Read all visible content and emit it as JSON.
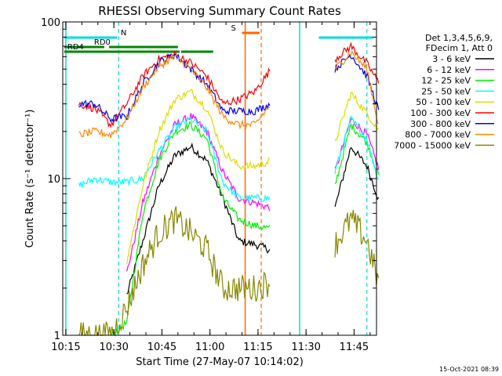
{
  "colors": {
    "3-6": "#000000",
    "6-12": "#ff00ff",
    "12-25": "#00ee00",
    "25-50": "#00ffff",
    "50-100": "#dddd00",
    "100-300": "#ff0000",
    "300-800": "#0000ee",
    "800-7000": "#ff8800",
    "7000-15000": "#888800",
    "attenuator": "#008800",
    "decimation": "#00dddd",
    "saa": "#ff6600"
  },
  "chart_data": {
    "type": "line",
    "title": "RHESSI Observing Summary Count Rates",
    "xlabel": "Start Time (27-May-07 10:14:02)",
    "ylabel": "Count Rate (s⁻¹ detector⁻¹)",
    "y_scale": "log",
    "xlim": [
      "10:14:02",
      "11:52:00"
    ],
    "ylim": [
      1,
      100
    ],
    "x_ticks": [
      "10:15",
      "10:30",
      "10:45",
      "11:00",
      "11:15",
      "11:30",
      "11:45"
    ],
    "y_ticks": [
      "1",
      "10",
      "100"
    ],
    "legend_header": [
      "Det 1,3,4,5,6,9,",
      "FDecim 1, Att 0"
    ],
    "legend_position": "right",
    "flags": {
      "RD0": {
        "label": "RD0",
        "intervals": [
          [
            "10:14:30",
            "10:27:00"
          ],
          [
            "10:28:30",
            "10:50:00"
          ]
        ]
      },
      "RD4": {
        "label": "RD4",
        "intervals": [
          [
            "10:14:30",
            "10:50:30"
          ],
          [
            "10:51:00",
            "11:01:00"
          ]
        ]
      },
      "N": {
        "label": "N",
        "intervals": [
          [
            "10:14:30",
            "10:31:00"
          ],
          [
            "11:34:00",
            "11:51:00"
          ]
        ]
      },
      "S": {
        "label": "S",
        "intervals": [
          [
            "11:10:00",
            "11:15:30"
          ]
        ]
      }
    },
    "markers": {
      "night_start": [
        "10:15:00",
        "11:28:00"
      ],
      "night_end": [
        "10:31:30",
        "11:49:00"
      ],
      "saa_start": "11:11:00",
      "saa_end": "11:16:00"
    },
    "x_minutes": [
      0,
      5,
      10,
      15,
      20,
      25,
      30,
      35,
      40,
      45,
      50,
      55,
      60,
      65,
      70,
      75,
      80,
      85,
      90,
      95,
      99
    ],
    "series": [
      {
        "name": "3 - 6 keV",
        "color": "3-6",
        "values": [
          null,
          null,
          null,
          null,
          1.8,
          4.0,
          9.0,
          14.0,
          16.0,
          13.0,
          7.5,
          4.0,
          3.8,
          3.5,
          null,
          null,
          null,
          6.5,
          16.0,
          12.0,
          7.0
        ]
      },
      {
        "name": "6 - 12 keV",
        "color": "6-12",
        "values": [
          null,
          null,
          null,
          null,
          2.5,
          7.0,
          14.0,
          22.0,
          25.0,
          20.0,
          11.0,
          7.5,
          7.0,
          6.5,
          null,
          null,
          null,
          11.0,
          24.0,
          19.0,
          11.0
        ]
      },
      {
        "name": "12 - 25 keV",
        "color": "12-25",
        "values": [
          null,
          null,
          null,
          1.0,
          1.2,
          6.0,
          13.0,
          20.0,
          22.0,
          18.0,
          7.5,
          5.5,
          5.0,
          4.8,
          null,
          null,
          null,
          9.0,
          22.0,
          17.0,
          10.0
        ]
      },
      {
        "name": "25 - 50 keV",
        "color": "25-50",
        "values": [
          null,
          9.0,
          10.0,
          9.5,
          9.5,
          10.0,
          15.0,
          21.0,
          24.0,
          20.0,
          9.5,
          7.5,
          7.5,
          7.5,
          null,
          null,
          null,
          11.0,
          24.0,
          18.0,
          9.0
        ]
      },
      {
        "name": "50 - 100 keV",
        "color": "50-100",
        "values": [
          null,
          null,
          null,
          null,
          3.0,
          9.0,
          20.0,
          32.0,
          36.0,
          28.0,
          15.0,
          12.0,
          12.0,
          13.0,
          null,
          null,
          null,
          17.0,
          35.0,
          26.0,
          20.0
        ]
      },
      {
        "name": "100 - 300 keV",
        "color": "100-300",
        "values": [
          null,
          30.0,
          28.0,
          22.0,
          30.0,
          45.0,
          58.0,
          62.0,
          55.0,
          45.0,
          30.0,
          32.0,
          36.0,
          50.0,
          null,
          null,
          null,
          58.0,
          70.0,
          54.0,
          40.0
        ]
      },
      {
        "name": "300 - 800 keV",
        "color": "300-800",
        "values": [
          null,
          30.0,
          30.0,
          24.0,
          25.0,
          40.0,
          55.0,
          62.0,
          50.0,
          40.0,
          27.0,
          27.0,
          27.0,
          30.0,
          null,
          null,
          null,
          50.0,
          62.0,
          45.0,
          26.0
        ]
      },
      {
        "name": "800 - 7000 keV",
        "color": "800-7000",
        "values": [
          null,
          19.0,
          20.0,
          19.0,
          24.0,
          38.0,
          52.0,
          60.0,
          50.0,
          38.0,
          25.0,
          22.0,
          22.0,
          30.0,
          null,
          null,
          null,
          50.0,
          64.0,
          50.0,
          20.0
        ]
      },
      {
        "name": "7000 - 15000 keV",
        "color": "7000-15000",
        "values": [
          null,
          1.0,
          1.0,
          1.0,
          1.5,
          2.8,
          4.5,
          5.5,
          4.5,
          3.5,
          2.0,
          2.0,
          2.0,
          2.2,
          null,
          null,
          null,
          3.8,
          5.5,
          4.0,
          2.0
        ]
      }
    ]
  },
  "footer": {
    "date_stamp": "15-Oct-2021 08:39"
  }
}
